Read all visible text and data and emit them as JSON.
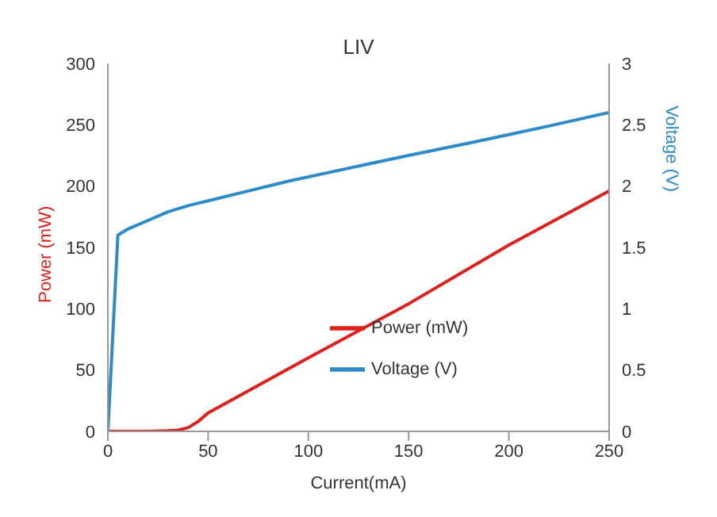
{
  "chart_data": {
    "type": "line",
    "title": "LIV",
    "xlabel": "Current(mA)",
    "ylabel": "Power (mW)",
    "y2label": "Voltage (V)",
    "series": [
      {
        "name": "Power (mW)",
        "color": "#e0201b",
        "x": [
          0,
          10,
          20,
          30,
          35,
          40,
          45,
          50,
          100,
          150,
          200,
          250
        ],
        "values": [
          0,
          0,
          0,
          0.5,
          1,
          3,
          8,
          15,
          60,
          104,
          152,
          196
        ]
      },
      {
        "name": "Voltage (V)",
        "color": "#2e8bc9",
        "axis": "y2",
        "x": [
          0,
          5,
          10,
          20,
          30,
          40,
          50,
          70,
          90,
          110,
          130,
          150,
          180,
          200,
          220,
          250
        ],
        "values": [
          0,
          1.6,
          1.65,
          1.72,
          1.79,
          1.84,
          1.88,
          1.96,
          2.04,
          2.11,
          2.18,
          2.25,
          2.35,
          2.42,
          2.49,
          2.6
        ]
      }
    ],
    "xlim": [
      0,
      250
    ],
    "xticks": [
      0,
      50,
      100,
      150,
      200,
      250
    ],
    "ylim": [
      0,
      300
    ],
    "yticks": [
      0,
      50,
      100,
      150,
      200,
      250,
      300
    ],
    "y2lim": [
      0,
      3
    ],
    "y2ticks": [
      0,
      0.5,
      1,
      1.5,
      2,
      2.5,
      3
    ],
    "grid": false,
    "legend": "bottom right",
    "marker": "none",
    "line_style": "solid"
  }
}
